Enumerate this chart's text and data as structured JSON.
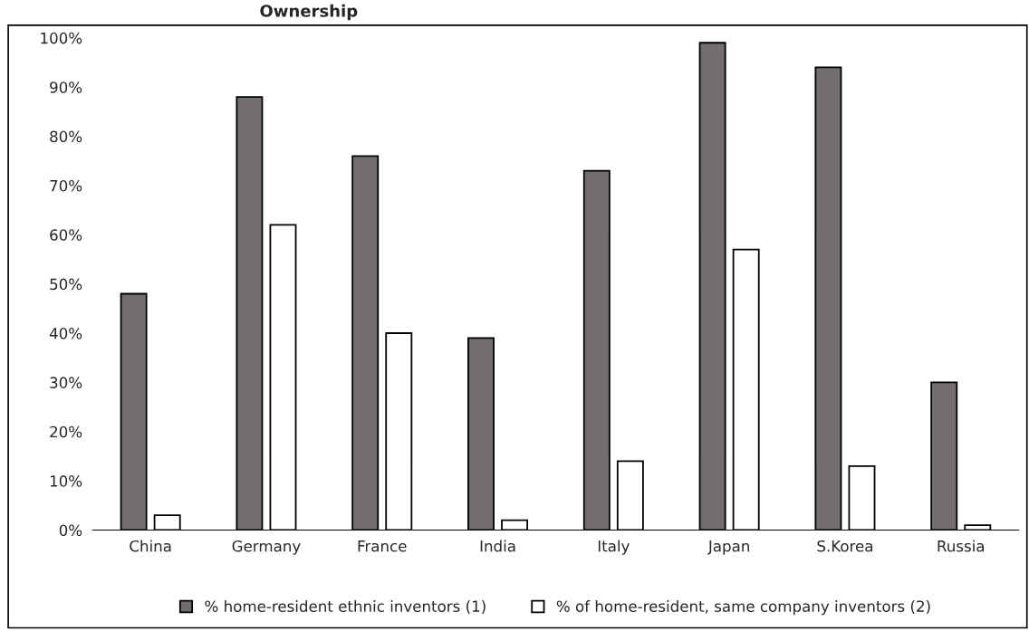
{
  "chart_data": {
    "type": "bar",
    "title": "Ownership",
    "categories": [
      "China",
      "Germany",
      "France",
      "India",
      "Italy",
      "Japan",
      "S.Korea",
      "Russia"
    ],
    "series": [
      {
        "name": "% home-resident ethnic inventors (1)",
        "color": "#726e6d",
        "values": [
          48,
          88,
          76,
          39,
          73,
          99,
          94,
          30
        ]
      },
      {
        "name": "% of home-resident, same company inventors (2)",
        "color": "#ffffff",
        "values": [
          3,
          62,
          40,
          2,
          14,
          57,
          13,
          1
        ]
      }
    ],
    "ylim": [
      0,
      100
    ],
    "yticks": [
      {
        "value": 0,
        "label": "0%"
      },
      {
        "value": 10,
        "label": "10%"
      },
      {
        "value": 20,
        "label": "20%"
      },
      {
        "value": 30,
        "label": "30%"
      },
      {
        "value": 40,
        "label": "40%"
      },
      {
        "value": 50,
        "label": "50%"
      },
      {
        "value": 60,
        "label": "60%"
      },
      {
        "value": 70,
        "label": "70%"
      },
      {
        "value": 80,
        "label": "80%"
      },
      {
        "value": 90,
        "label": "90%"
      },
      {
        "value": 100,
        "label": "100%"
      }
    ],
    "grid": false,
    "legend": "bottom"
  }
}
